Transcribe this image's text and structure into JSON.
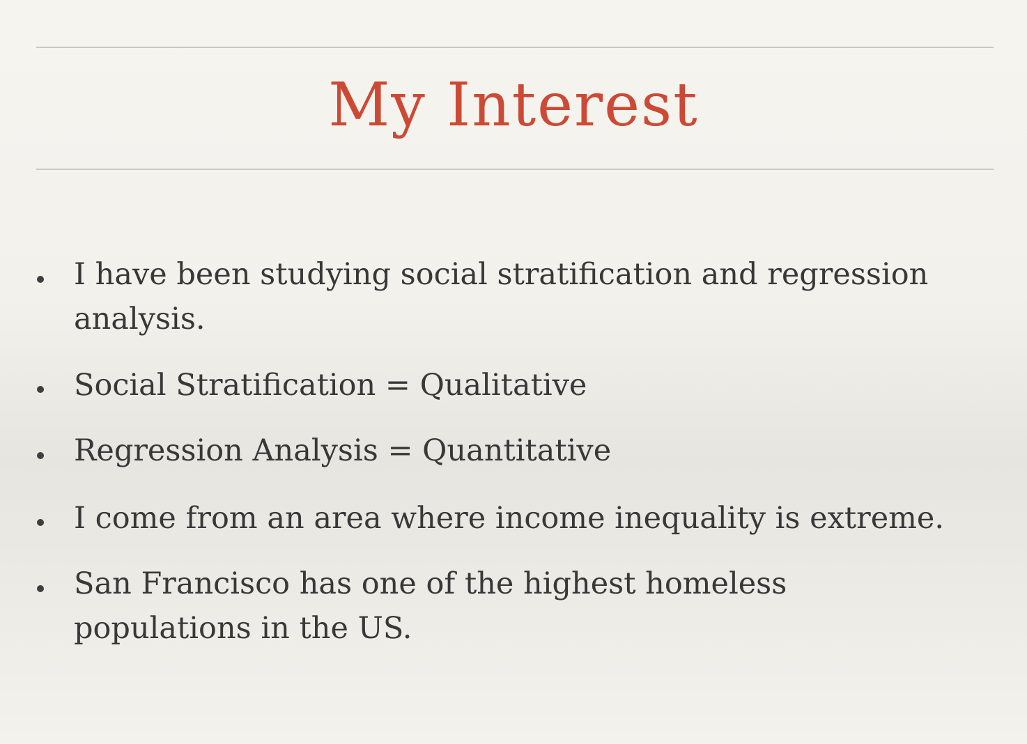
{
  "slide": {
    "title": "My Interest",
    "title_color": "#cc4a35",
    "text_color": "#383838",
    "bullets": [
      "I have been studying social stratification and regression\nanalysis.",
      "Social Stratification = Qualitative",
      "Regression Analysis = Quantitative",
      "I come from an area where income inequality is extreme.",
      "San Francisco has one of the highest homeless\npopulations in the US."
    ]
  }
}
